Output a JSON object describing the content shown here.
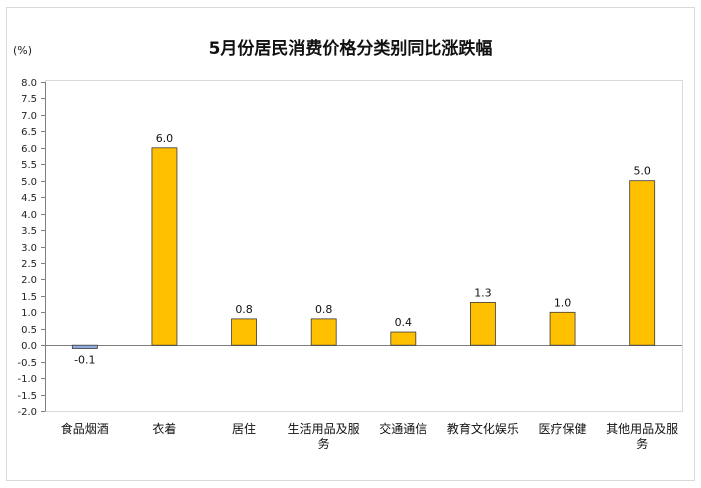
{
  "chart_data": {
    "type": "bar",
    "title": "5月份居民消费价格分类别同比涨跌幅",
    "unit_label": "(%)",
    "categories": [
      "食品烟酒",
      "衣着",
      "居住",
      "生活用品及服务",
      "交通通信",
      "教育文化娱乐",
      "医疗保健",
      "其他用品及服务"
    ],
    "values": [
      -0.1,
      6.0,
      0.8,
      0.8,
      0.4,
      1.3,
      1.0,
      5.0
    ],
    "value_labels": [
      "-0.1",
      "6.0",
      "0.8",
      "0.8",
      "0.4",
      "1.3",
      "1.0",
      "5.0"
    ],
    "yticks": [
      "8.0",
      "7.5",
      "7.0",
      "6.5",
      "6.0",
      "5.5",
      "5.0",
      "4.5",
      "4.0",
      "3.5",
      "3.0",
      "2.5",
      "2.0",
      "1.5",
      "1.0",
      "0.5",
      "0.0",
      "-0.5",
      "-1.0",
      "-1.5",
      "-2.0"
    ],
    "ylim": [
      -2.0,
      8.0
    ],
    "ystep": 0.5,
    "grid": false,
    "legend": "none",
    "colors": {
      "positive": "#FFC000",
      "negative": "#8FAADC",
      "border": "#3a3a3a",
      "axis": "#7f7f7f",
      "frame": "#d9d9d9"
    }
  }
}
